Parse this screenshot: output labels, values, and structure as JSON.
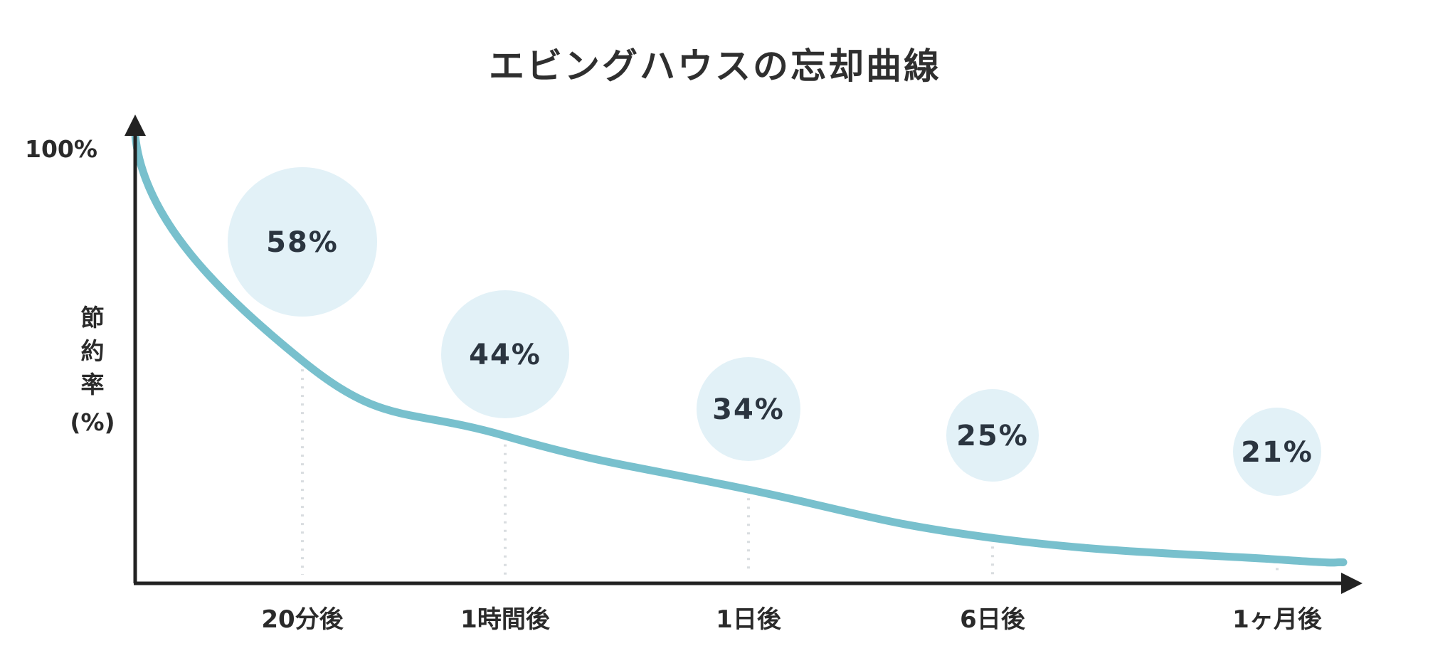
{
  "chart_data": {
    "type": "line",
    "title": "エビングハウスの忘却曲線",
    "ylabel": "節約率(%)",
    "ylabel_lines": [
      "節",
      "約",
      "率",
      "(%)"
    ],
    "y_tick_labels": [
      "100%"
    ],
    "ylim": [
      0,
      100
    ],
    "categories": [
      "20分後",
      "1時間後",
      "1日後",
      "6日後",
      "1ヶ月後"
    ],
    "values": [
      58,
      44,
      34,
      25,
      21
    ],
    "data_labels": [
      "58%",
      "44%",
      "34%",
      "25%",
      "21%"
    ],
    "start_value": 100,
    "grid": false,
    "legend": "none"
  },
  "colors": {
    "curve": "#78c0cd",
    "bubble": "#e2f1f7",
    "axis": "#222222",
    "guide": "#d9dde0"
  }
}
